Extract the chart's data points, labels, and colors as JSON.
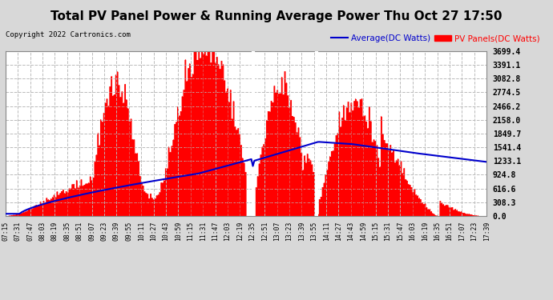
{
  "title": "Total PV Panel Power & Running Average Power Thu Oct 27 17:50",
  "copyright": "Copyright 2022 Cartronics.com",
  "legend_avg": "Average(DC Watts)",
  "legend_pv": "PV Panels(DC Watts)",
  "yticks": [
    0.0,
    308.3,
    616.6,
    924.8,
    1233.1,
    1541.4,
    1849.7,
    2158.0,
    2466.2,
    2774.5,
    3082.8,
    3391.1,
    3699.4
  ],
  "ymax": 3699.4,
  "bg_color": "#d8d8d8",
  "plot_bg": "#ffffff",
  "pv_color": "#ff0000",
  "avg_color": "#0000cc",
  "grid_color": "#bbbbbb",
  "title_fontsize": 11,
  "xtick_labels": [
    "07:15",
    "07:31",
    "07:47",
    "08:03",
    "08:19",
    "08:35",
    "08:51",
    "09:07",
    "09:23",
    "09:39",
    "09:55",
    "10:11",
    "10:27",
    "10:43",
    "10:59",
    "11:15",
    "11:31",
    "11:47",
    "12:03",
    "12:19",
    "12:35",
    "12:51",
    "13:07",
    "13:23",
    "13:39",
    "13:55",
    "14:11",
    "14:27",
    "14:43",
    "14:59",
    "15:15",
    "15:31",
    "15:47",
    "16:03",
    "16:19",
    "16:35",
    "16:51",
    "17:07",
    "17:23",
    "17:39"
  ],
  "n_points": 320,
  "white_lines": [
    0.513,
    0.645
  ]
}
